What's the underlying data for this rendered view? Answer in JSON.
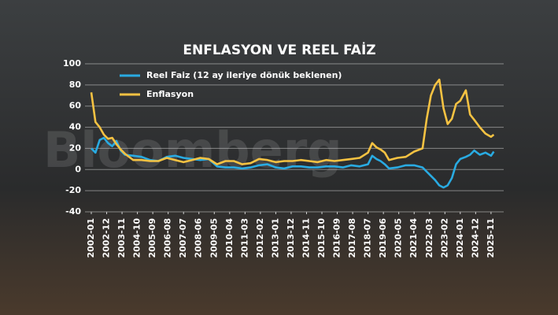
{
  "chart_data": {
    "type": "line",
    "title": "ENFLASYON VE REEL FAİZ",
    "watermark": "Bloomberg",
    "x": [
      "2002-01",
      "2002-04",
      "2002-07",
      "2002-10",
      "2003-01",
      "2003-04",
      "2003-07",
      "2003-10",
      "2004-01",
      "2004-07",
      "2005-01",
      "2005-07",
      "2006-01",
      "2006-07",
      "2007-01",
      "2007-07",
      "2008-01",
      "2008-07",
      "2009-01",
      "2009-07",
      "2010-01",
      "2010-07",
      "2011-01",
      "2011-07",
      "2012-01",
      "2012-07",
      "2013-01",
      "2013-07",
      "2014-01",
      "2014-07",
      "2015-01",
      "2015-07",
      "2016-01",
      "2016-07",
      "2017-01",
      "2017-07",
      "2018-01",
      "2018-07",
      "2018-10",
      "2019-01",
      "2019-04",
      "2019-07",
      "2019-10",
      "2020-04",
      "2020-10",
      "2021-04",
      "2021-10",
      "2022-01",
      "2022-04",
      "2022-07",
      "2022-10",
      "2023-01",
      "2023-04",
      "2023-07",
      "2023-10",
      "2024-01",
      "2024-05",
      "2024-08",
      "2024-11",
      "2025-03",
      "2025-07",
      "2025-11",
      "2026-01"
    ],
    "series": [
      {
        "name": "Reel Faiz (12 ay ileriye dönük beklenen)",
        "color": "#29abe2",
        "values": [
          20,
          16,
          28,
          30,
          25,
          22,
          27,
          18,
          14,
          13,
          12,
          9,
          8,
          12,
          13,
          11,
          10,
          9,
          10,
          3,
          2,
          2,
          1,
          2,
          4,
          5,
          2,
          1,
          3,
          3,
          2,
          2,
          3,
          3,
          2,
          4,
          3,
          5,
          13,
          10,
          8,
          5,
          1,
          2,
          4,
          4,
          2,
          -2,
          -6,
          -10,
          -15,
          -17,
          -15,
          -8,
          5,
          10,
          12,
          14,
          18,
          14,
          16,
          13,
          17
        ]
      },
      {
        "name": "Enflasyon",
        "color": "#f5c242",
        "values": [
          73,
          45,
          40,
          33,
          29,
          30,
          24,
          19,
          15,
          9,
          9,
          8,
          8,
          11,
          9,
          7,
          9,
          11,
          10,
          5,
          8,
          8,
          5,
          6,
          10,
          9,
          7,
          8,
          8,
          9,
          8,
          7,
          9,
          8,
          9,
          10,
          11,
          16,
          25,
          21,
          19,
          16,
          9,
          11,
          12,
          17,
          20,
          48,
          70,
          80,
          85,
          58,
          43,
          48,
          62,
          65,
          75,
          52,
          47,
          40,
          34,
          31,
          33
        ]
      }
    ],
    "xlim": [
      "2002-01",
      "2026-03"
    ],
    "xticks": [
      "2002-01",
      "2002-12",
      "2003-11",
      "2004-10",
      "2005-09",
      "2006-08",
      "2007-07",
      "2008-06",
      "2009-05",
      "2010-04",
      "2011-03",
      "2012-02",
      "2013-01",
      "2013-12",
      "2014-11",
      "2015-10",
      "2016-09",
      "2017-08",
      "2018-07",
      "2019-06",
      "2020-05",
      "2021-04",
      "2022-03",
      "2023-02",
      "2024-01",
      "2024-12",
      "2025-11"
    ],
    "ylim": [
      -40,
      100
    ],
    "yticks": [
      100,
      80,
      60,
      40,
      20,
      0,
      -20,
      -40
    ],
    "grid": true,
    "legend": "top-left"
  }
}
